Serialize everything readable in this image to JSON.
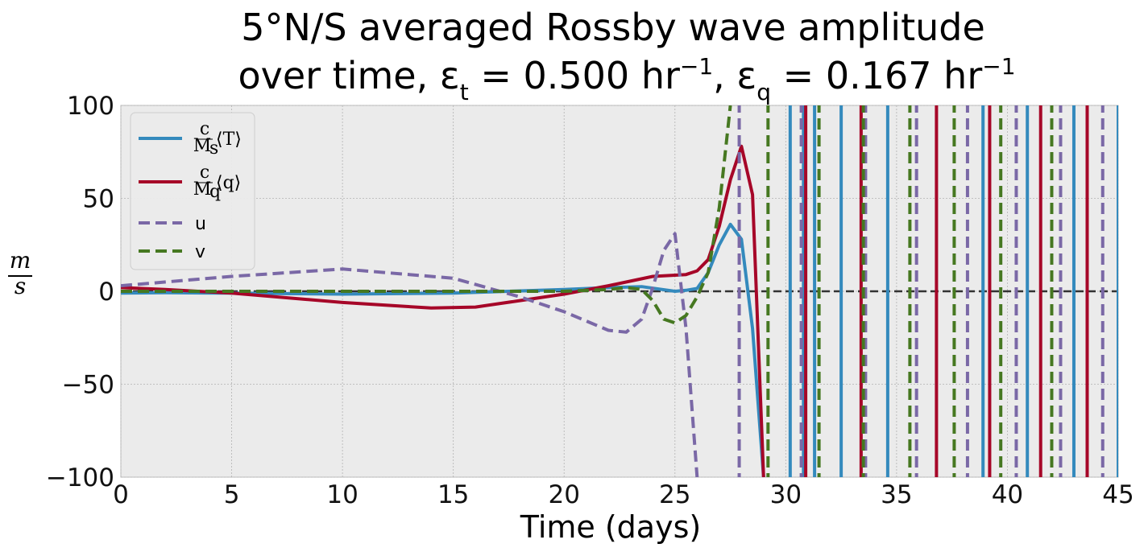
{
  "chart_data": {
    "type": "line",
    "title_line1": "5°N/S averaged Rossby wave amplitude",
    "title_line2_prefix": "over time, ε",
    "title_sub_t": "t",
    "title_eq1": " = 0.500 hr",
    "title_exp1": "−1",
    "title_sep": ",  ε",
    "title_sub_q": "q",
    "title_eq2": " = 0.167 hr",
    "title_exp2": "−1",
    "xlabel": "Time (days)",
    "ylabel_num": "m",
    "ylabel_den": "s",
    "xlim": [
      0,
      45
    ],
    "ylim": [
      -100,
      100
    ],
    "xticks": [
      0,
      5,
      10,
      15,
      20,
      25,
      30,
      35,
      40,
      45
    ],
    "yticks": [
      -100,
      -50,
      0,
      50,
      100
    ],
    "ytick_labels": [
      "−100",
      "−50",
      "0",
      "50",
      "100"
    ],
    "grid": true,
    "background": "#ebebeb",
    "legend_position": "upper-left",
    "zero_line": {
      "y": 0,
      "color": "#333333",
      "style": "dashed"
    },
    "series": [
      {
        "key": "T",
        "name": "c/M_s ⟨T⟩",
        "legend_num": "c",
        "legend_den": "M",
        "legend_den_sub": "s",
        "legend_bracket": "⟨T⟩",
        "color": "#348abd",
        "dash": "solid",
        "points": [
          [
            0,
            -1
          ],
          [
            2,
            -0.8
          ],
          [
            5,
            -1
          ],
          [
            10,
            -1.5
          ],
          [
            15,
            -1
          ],
          [
            20,
            1
          ],
          [
            22,
            2
          ],
          [
            23.5,
            2.5
          ],
          [
            25,
            0
          ],
          [
            25.5,
            0.5
          ],
          [
            26,
            1.5
          ],
          [
            26.5,
            10
          ],
          [
            27,
            25
          ],
          [
            27.5,
            36
          ],
          [
            28,
            28
          ],
          [
            28.5,
            -20
          ],
          [
            29,
            -100
          ]
        ],
        "spikes": [
          30.2,
          30.8,
          31.3,
          32.5,
          34.6,
          38.9,
          40.9,
          43,
          45
        ]
      },
      {
        "key": "q",
        "name": "c/M_q ⟨q⟩",
        "legend_num": "c",
        "legend_den": "M",
        "legend_den_sub": "q",
        "legend_bracket": "⟨q⟩",
        "color": "#a60628",
        "dash": "solid",
        "points": [
          [
            0,
            2
          ],
          [
            2,
            1
          ],
          [
            5,
            -1
          ],
          [
            10,
            -6
          ],
          [
            14,
            -9
          ],
          [
            16,
            -8.5
          ],
          [
            18,
            -5
          ],
          [
            20,
            -1.5
          ],
          [
            22,
            3
          ],
          [
            24,
            8
          ],
          [
            25.5,
            9
          ],
          [
            26,
            11
          ],
          [
            26.5,
            17
          ],
          [
            27,
            35
          ],
          [
            27.5,
            60
          ],
          [
            28,
            78
          ],
          [
            28.5,
            52
          ],
          [
            29,
            -100
          ]
        ],
        "spikes": [
          30.9,
          33.4,
          36.8,
          39.2,
          41.5,
          43.6
        ]
      },
      {
        "key": "u",
        "name": "u",
        "color": "#7a68a6",
        "dash": "dashed",
        "points": [
          [
            0,
            3
          ],
          [
            5,
            8
          ],
          [
            10,
            12
          ],
          [
            15,
            7
          ],
          [
            18,
            -3
          ],
          [
            20,
            -11
          ],
          [
            22,
            -21
          ],
          [
            22.8,
            -22
          ],
          [
            23.5,
            -15
          ],
          [
            24,
            2
          ],
          [
            24.5,
            22
          ],
          [
            25,
            31
          ],
          [
            25.5,
            -20
          ],
          [
            26,
            -100
          ]
        ],
        "spikes": [
          27.9,
          30.7,
          33.6,
          35.9,
          38.2,
          40.4,
          42.4,
          44.3
        ]
      },
      {
        "key": "v",
        "name": "v",
        "color": "#467821",
        "dash": "dashed",
        "points": [
          [
            0,
            0
          ],
          [
            5,
            0
          ],
          [
            10,
            0
          ],
          [
            15,
            0
          ],
          [
            20,
            0
          ],
          [
            22,
            1
          ],
          [
            22.8,
            2
          ],
          [
            23.5,
            1
          ],
          [
            24,
            -5
          ],
          [
            24.5,
            -15
          ],
          [
            25,
            -17
          ],
          [
            25.5,
            -13
          ],
          [
            26,
            -3
          ],
          [
            26.5,
            10
          ],
          [
            27,
            45
          ],
          [
            27.5,
            100
          ]
        ],
        "spikes": [
          29.2,
          31.5,
          33.5,
          35.6,
          37.6,
          39.7,
          42
        ]
      }
    ]
  }
}
